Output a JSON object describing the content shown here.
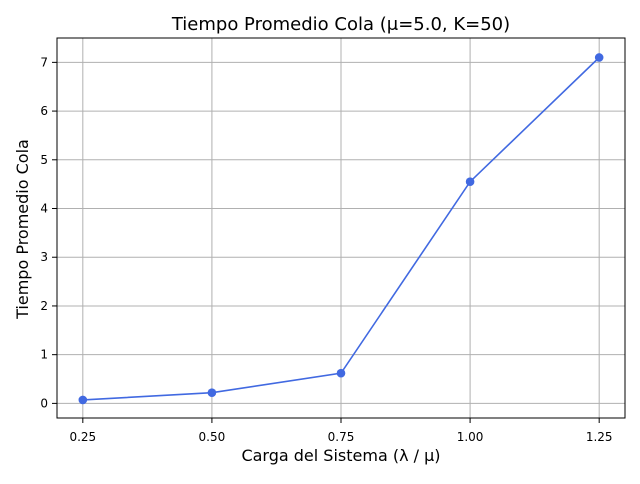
{
  "chart_data": {
    "type": "line",
    "title": "Tiempo Promedio Cola (μ=5.0, K=50)",
    "xlabel": "Carga del Sistema (λ / μ)",
    "ylabel": "Tiempo Promedio Cola",
    "x": [
      0.25,
      0.5,
      0.75,
      1.0,
      1.25
    ],
    "x_tick_labels": [
      "0.25",
      "0.50",
      "0.75",
      "1.00",
      "1.25"
    ],
    "y_ticks": [
      0,
      1,
      2,
      3,
      4,
      5,
      6,
      7
    ],
    "y_tick_labels": [
      "0",
      "1",
      "2",
      "3",
      "4",
      "5",
      "6",
      "7"
    ],
    "xlim": [
      0.2,
      1.3
    ],
    "ylim": [
      -0.3,
      7.5
    ],
    "grid": true,
    "series": [
      {
        "values": [
          0.07,
          0.22,
          0.62,
          4.55,
          7.1
        ],
        "color": "#4169e1",
        "marker": "circle"
      }
    ]
  }
}
